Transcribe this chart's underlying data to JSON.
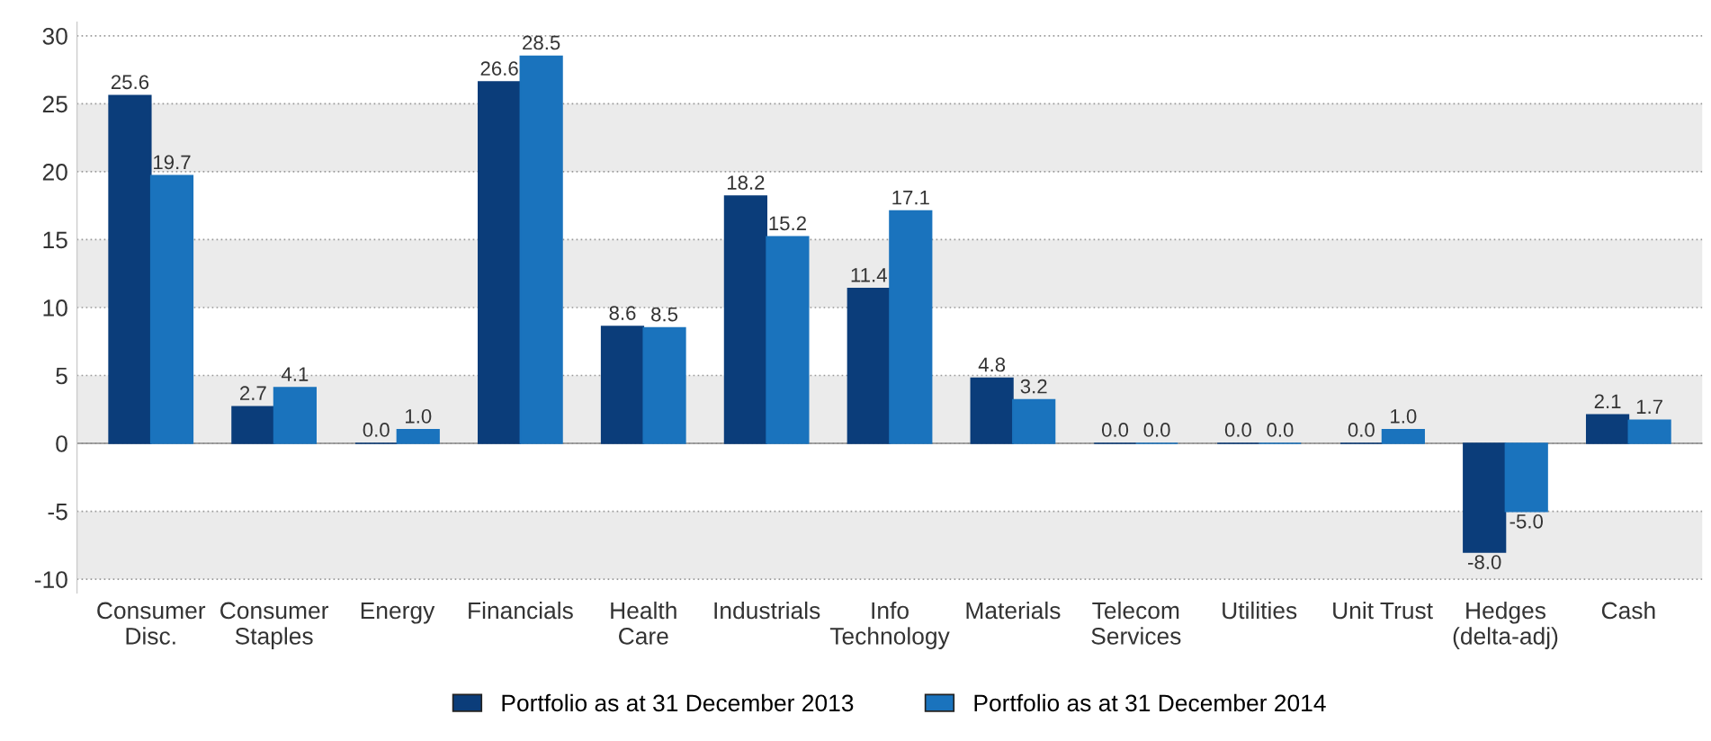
{
  "chart_data": {
    "type": "bar",
    "categories": [
      "Consumer\nDisc.",
      "Consumer\nStaples",
      "Energy",
      "Financials",
      "Health\nCare",
      "Industrials",
      "Info\nTechnology",
      "Materials",
      "Telecom\nServices",
      "Utilities",
      "Unit Trust",
      "Hedges\n(delta-adj)",
      "Cash"
    ],
    "series": [
      {
        "name": "Portfolio as at 31 December 2013",
        "color": "#0b3d7a",
        "values": [
          25.6,
          2.7,
          0.0,
          26.6,
          8.6,
          18.2,
          11.4,
          4.8,
          0.0,
          0.0,
          0.0,
          -8.0,
          2.1
        ],
        "value_labels": [
          "25.6",
          "2.7",
          "0.0",
          "26.6",
          "8.6",
          "18.2",
          "11.4",
          "4.8",
          "0.0",
          "0.0",
          "0.0",
          "-8.0",
          "2.1"
        ]
      },
      {
        "name": "Portfolio as at 31 December 2014",
        "color": "#1a73bd",
        "values": [
          19.7,
          4.1,
          1.0,
          28.5,
          8.5,
          15.2,
          17.1,
          3.2,
          0.0,
          0.0,
          1.0,
          -5.0,
          1.7
        ],
        "value_labels": [
          "19.7",
          "4.1",
          "1.0",
          "28.5",
          "8.5",
          "15.2",
          "17.1",
          "3.2",
          "0.0",
          "0.0",
          "1.0",
          "-5.0",
          "1.7"
        ]
      }
    ],
    "ylim": [
      -11,
      31
    ],
    "yticks": [
      -10,
      -5,
      0,
      5,
      10,
      15,
      20,
      25,
      30
    ],
    "bands": [
      {
        "axis": "y",
        "from": -10,
        "to": -5,
        "color": "#ebebeb"
      },
      {
        "axis": "y",
        "from": 0,
        "to": 5,
        "color": "#ebebeb"
      },
      {
        "axis": "y",
        "from": 10,
        "to": 15,
        "color": "#ebebeb"
      },
      {
        "axis": "y",
        "from": 20,
        "to": 25,
        "color": "#ebebeb"
      }
    ],
    "grid": "y",
    "legend": "bottom"
  }
}
